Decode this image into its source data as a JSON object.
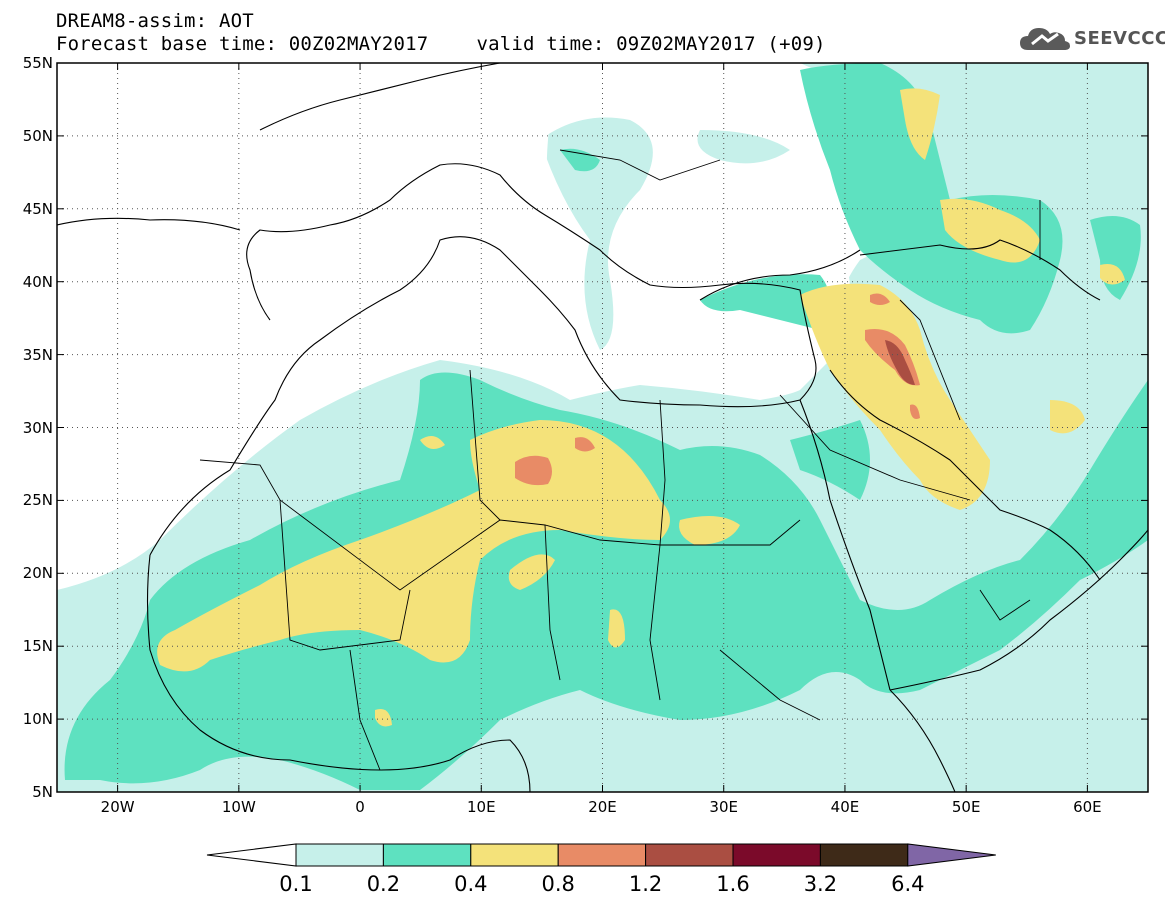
{
  "header": {
    "line1": "DREAM8-assim: AOT",
    "base_time": "Forecast base time: 00Z02MAY2017",
    "valid_time": "valid time: 09Z02MAY2017 (+09)"
  },
  "logo": {
    "text": "SEEVCCC",
    "icon": "cloud-icon"
  },
  "map": {
    "lon_range": [
      -25,
      65
    ],
    "lat_range": [
      5,
      55
    ],
    "x_ticks": [
      {
        "lon": -20,
        "label": "20W"
      },
      {
        "lon": -10,
        "label": "10W"
      },
      {
        "lon": 0,
        "label": "0"
      },
      {
        "lon": 10,
        "label": "10E"
      },
      {
        "lon": 20,
        "label": "20E"
      },
      {
        "lon": 30,
        "label": "30E"
      },
      {
        "lon": 40,
        "label": "40E"
      },
      {
        "lon": 50,
        "label": "50E"
      },
      {
        "lon": 60,
        "label": "60E"
      }
    ],
    "y_ticks": [
      {
        "lat": 55,
        "label": "55N"
      },
      {
        "lat": 50,
        "label": "50N"
      },
      {
        "lat": 45,
        "label": "45N"
      },
      {
        "lat": 40,
        "label": "40N"
      },
      {
        "lat": 35,
        "label": "35N"
      },
      {
        "lat": 30,
        "label": "30N"
      },
      {
        "lat": 25,
        "label": "25N"
      },
      {
        "lat": 20,
        "label": "20N"
      },
      {
        "lat": 15,
        "label": "15N"
      },
      {
        "lat": 10,
        "label": "10N"
      },
      {
        "lat": 5,
        "label": "5N"
      }
    ],
    "grid": "dotted"
  },
  "colorbar": {
    "colors": [
      "#c6f0ea",
      "#5ee1c0",
      "#f4e27a",
      "#e88b66",
      "#aa4e42",
      "#7b0a2a",
      "#3e2a18"
    ],
    "over_color": "#8066a6",
    "under_color": "#ffffff",
    "labels": [
      "0.1",
      "0.2",
      "0.4",
      "0.8",
      "1.2",
      "1.6",
      "3.2",
      "6.4"
    ]
  },
  "colors": {
    "land": "#ffffff",
    "border": "#000000"
  }
}
